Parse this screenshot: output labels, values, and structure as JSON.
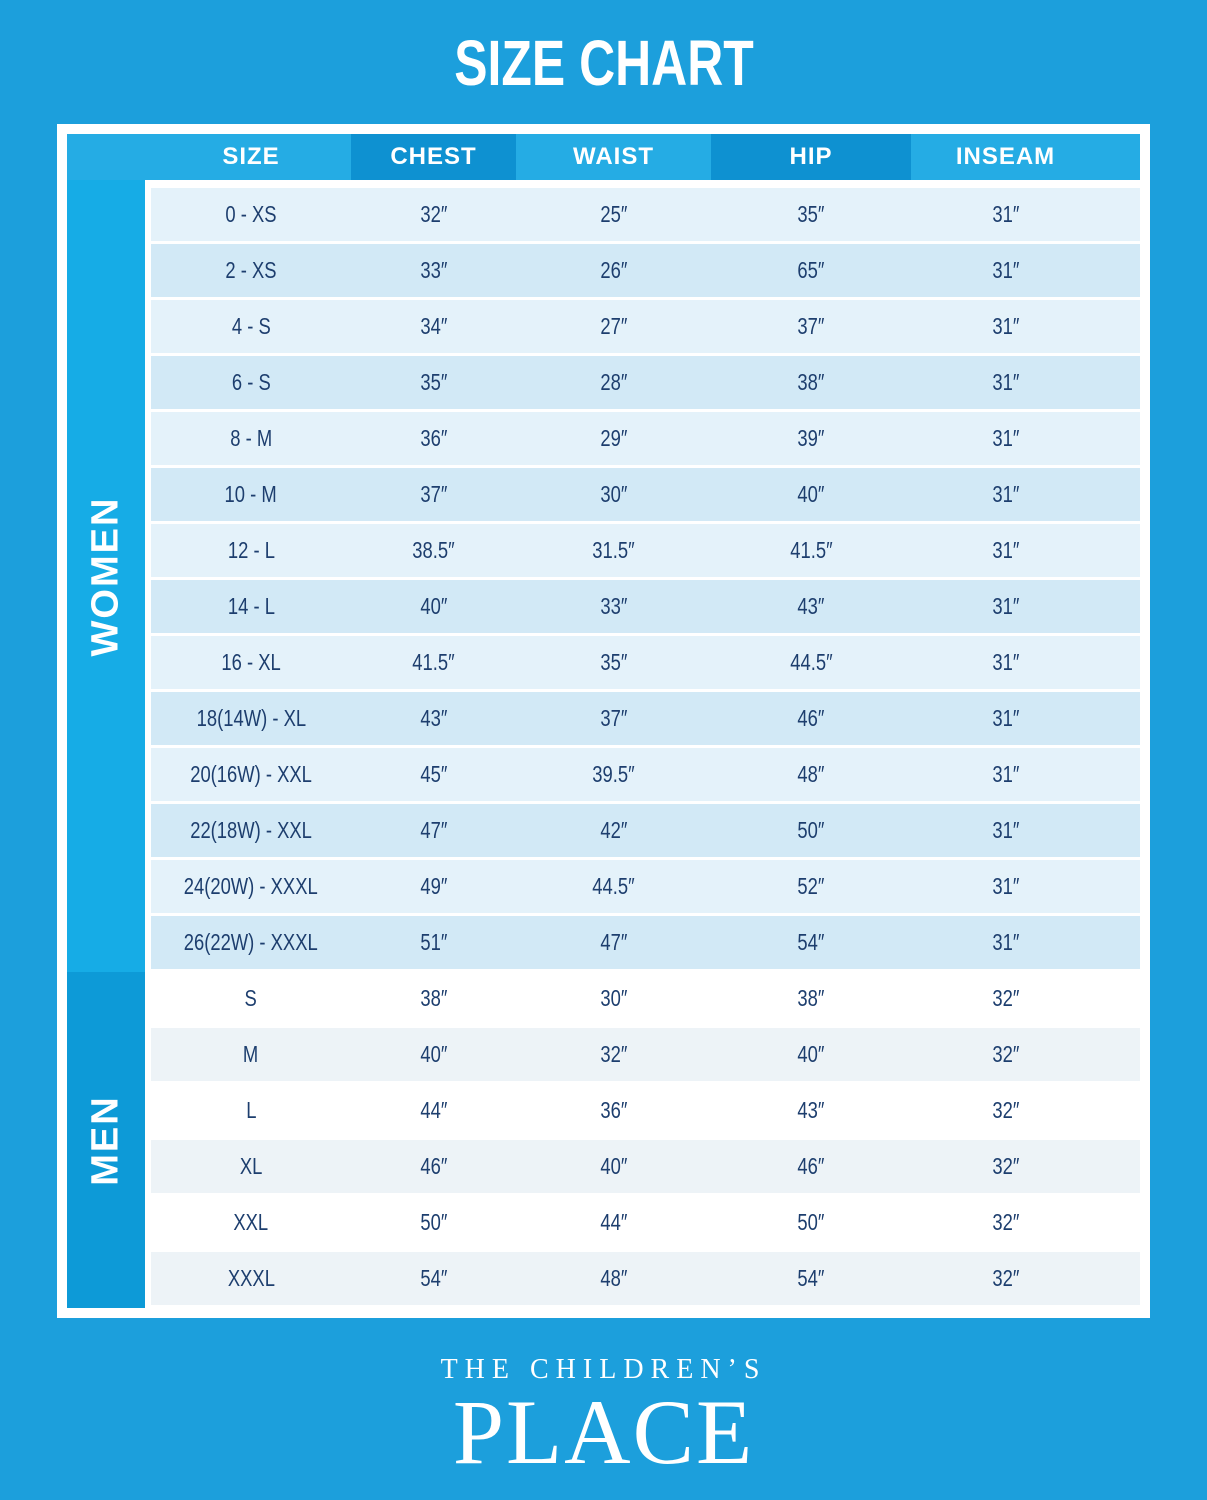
{
  "title": "SIZE CHART",
  "table": {
    "columns": [
      "SIZE",
      "CHEST",
      "WAIST",
      "HIP",
      "INSEAM"
    ],
    "sections": [
      {
        "id": "women",
        "label": "WOMEN",
        "rows": [
          [
            "0 - XS",
            "32″",
            "25″",
            "35″",
            "31″"
          ],
          [
            "2 - XS",
            "33″",
            "26″",
            "65″",
            "31″"
          ],
          [
            "4 - S",
            "34″",
            "27″",
            "37″",
            "31″"
          ],
          [
            "6 - S",
            "35″",
            "28″",
            "38″",
            "31″"
          ],
          [
            "8 - M",
            "36″",
            "29″",
            "39″",
            "31″"
          ],
          [
            "10 - M",
            "37″",
            "30″",
            "40″",
            "31″"
          ],
          [
            "12 - L",
            "38.5″",
            "31.5″",
            "41.5″",
            "31″"
          ],
          [
            "14 - L",
            "40″",
            "33″",
            "43″",
            "31″"
          ],
          [
            "16 - XL",
            "41.5″",
            "35″",
            "44.5″",
            "31″"
          ],
          [
            "18(14W) - XL",
            "43″",
            "37″",
            "46″",
            "31″"
          ],
          [
            "20(16W) - XXL",
            "45″",
            "39.5″",
            "48″",
            "31″"
          ],
          [
            "22(18W) - XXL",
            "47″",
            "42″",
            "50″",
            "31″"
          ],
          [
            "24(20W) - XXXL",
            "49″",
            "44.5″",
            "52″",
            "31″"
          ],
          [
            "26(22W) - XXXL",
            "51″",
            "47″",
            "54″",
            "31″"
          ]
        ]
      },
      {
        "id": "men",
        "label": "MEN",
        "rows": [
          [
            "S",
            "38″",
            "30″",
            "38″",
            "32″"
          ],
          [
            "M",
            "40″",
            "32″",
            "40″",
            "32″"
          ],
          [
            "L",
            "44″",
            "36″",
            "43″",
            "32″"
          ],
          [
            "XL",
            "46″",
            "40″",
            "46″",
            "32″"
          ],
          [
            "XXL",
            "50″",
            "44″",
            "50″",
            "32″"
          ],
          [
            "XXXL",
            "54″",
            "48″",
            "54″",
            "32″"
          ]
        ]
      }
    ]
  },
  "footer": {
    "brand_top": "THE CHILDREN’S",
    "brand_main": "PLACE"
  },
  "colors": {
    "bg": "#1C9FDC",
    "header_light": "#25ACE4",
    "header_dark": "#0E91D1",
    "sidebar_women": "#16ACE6",
    "sidebar_men": "#0D9AD7",
    "row_women_light": "#E4F2FA",
    "row_women_dark": "#D2E9F6",
    "row_men_light": "#FFFFFF",
    "row_men_dark": "#EDF3F7",
    "text_navy": "#1D3E6E"
  }
}
